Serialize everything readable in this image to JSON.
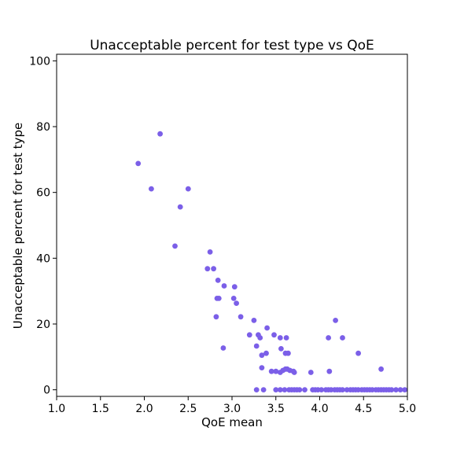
{
  "chart_data": {
    "type": "scatter",
    "title": "Unacceptable percent for test type vs QoE",
    "xlabel": "QoE mean",
    "ylabel": "Unacceptable percent for test type",
    "xlim": [
      1.0,
      5.0
    ],
    "ylim": [
      -2,
      102
    ],
    "xticks": [
      "1.0",
      "1.5",
      "2.0",
      "2.5",
      "3.0",
      "3.5",
      "4.0",
      "4.5",
      "5.0"
    ],
    "yticks": [
      "0",
      "20",
      "40",
      "60",
      "80",
      "100"
    ],
    "grid": false,
    "marker_color": "#7b5fe8",
    "points": [
      {
        "x": 1.93,
        "y": 68.8
      },
      {
        "x": 2.08,
        "y": 61.1
      },
      {
        "x": 2.18,
        "y": 77.8
      },
      {
        "x": 2.41,
        "y": 55.6
      },
      {
        "x": 2.5,
        "y": 61.1
      },
      {
        "x": 2.35,
        "y": 43.7
      },
      {
        "x": 2.75,
        "y": 41.9
      },
      {
        "x": 2.72,
        "y": 36.8
      },
      {
        "x": 2.79,
        "y": 36.8
      },
      {
        "x": 2.84,
        "y": 33.3
      },
      {
        "x": 2.91,
        "y": 31.6
      },
      {
        "x": 3.03,
        "y": 31.3
      },
      {
        "x": 2.83,
        "y": 27.8
      },
      {
        "x": 2.85,
        "y": 27.8
      },
      {
        "x": 3.02,
        "y": 27.8
      },
      {
        "x": 3.05,
        "y": 26.3
      },
      {
        "x": 2.82,
        "y": 22.2
      },
      {
        "x": 3.1,
        "y": 22.2
      },
      {
        "x": 2.9,
        "y": 12.7
      },
      {
        "x": 3.25,
        "y": 21.1
      },
      {
        "x": 3.2,
        "y": 16.7
      },
      {
        "x": 3.3,
        "y": 16.7
      },
      {
        "x": 3.32,
        "y": 15.8
      },
      {
        "x": 3.28,
        "y": 13.3
      },
      {
        "x": 3.4,
        "y": 18.8
      },
      {
        "x": 3.48,
        "y": 16.7
      },
      {
        "x": 3.55,
        "y": 15.8
      },
      {
        "x": 3.62,
        "y": 15.8
      },
      {
        "x": 3.56,
        "y": 12.5
      },
      {
        "x": 3.34,
        "y": 10.5
      },
      {
        "x": 3.39,
        "y": 11.1
      },
      {
        "x": 3.61,
        "y": 11.1
      },
      {
        "x": 3.64,
        "y": 11.1
      },
      {
        "x": 3.34,
        "y": 6.7
      },
      {
        "x": 3.45,
        "y": 5.6
      },
      {
        "x": 3.5,
        "y": 5.6
      },
      {
        "x": 3.55,
        "y": 5.3
      },
      {
        "x": 3.58,
        "y": 5.9
      },
      {
        "x": 3.61,
        "y": 6.3
      },
      {
        "x": 3.63,
        "y": 6.3
      },
      {
        "x": 3.66,
        "y": 5.9
      },
      {
        "x": 3.7,
        "y": 5.6
      },
      {
        "x": 3.71,
        "y": 5.3
      },
      {
        "x": 3.9,
        "y": 5.3
      },
      {
        "x": 4.11,
        "y": 5.6
      },
      {
        "x": 4.1,
        "y": 15.8
      },
      {
        "x": 4.18,
        "y": 21.1
      },
      {
        "x": 4.26,
        "y": 15.8
      },
      {
        "x": 4.44,
        "y": 11.1
      },
      {
        "x": 4.7,
        "y": 6.3
      },
      {
        "x": 3.28,
        "y": 0
      },
      {
        "x": 3.36,
        "y": 0
      },
      {
        "x": 3.5,
        "y": 0
      },
      {
        "x": 3.55,
        "y": 0
      },
      {
        "x": 3.6,
        "y": 0
      },
      {
        "x": 3.65,
        "y": 0
      },
      {
        "x": 3.68,
        "y": 0
      },
      {
        "x": 3.71,
        "y": 0
      },
      {
        "x": 3.74,
        "y": 0
      },
      {
        "x": 3.77,
        "y": 0
      },
      {
        "x": 3.83,
        "y": 0
      },
      {
        "x": 3.92,
        "y": 0
      },
      {
        "x": 3.95,
        "y": 0
      },
      {
        "x": 3.98,
        "y": 0
      },
      {
        "x": 4.02,
        "y": 0
      },
      {
        "x": 4.07,
        "y": 0
      },
      {
        "x": 4.1,
        "y": 0
      },
      {
        "x": 4.13,
        "y": 0
      },
      {
        "x": 4.17,
        "y": 0
      },
      {
        "x": 4.2,
        "y": 0
      },
      {
        "x": 4.23,
        "y": 0
      },
      {
        "x": 4.26,
        "y": 0
      },
      {
        "x": 4.31,
        "y": 0
      },
      {
        "x": 4.35,
        "y": 0
      },
      {
        "x": 4.38,
        "y": 0
      },
      {
        "x": 4.41,
        "y": 0
      },
      {
        "x": 4.44,
        "y": 0
      },
      {
        "x": 4.48,
        "y": 0
      },
      {
        "x": 4.51,
        "y": 0
      },
      {
        "x": 4.54,
        "y": 0
      },
      {
        "x": 4.57,
        "y": 0
      },
      {
        "x": 4.6,
        "y": 0
      },
      {
        "x": 4.64,
        "y": 0
      },
      {
        "x": 4.67,
        "y": 0
      },
      {
        "x": 4.7,
        "y": 0
      },
      {
        "x": 4.73,
        "y": 0
      },
      {
        "x": 4.76,
        "y": 0
      },
      {
        "x": 4.79,
        "y": 0
      },
      {
        "x": 4.82,
        "y": 0
      },
      {
        "x": 4.87,
        "y": 0
      },
      {
        "x": 4.92,
        "y": 0
      },
      {
        "x": 4.97,
        "y": 0
      }
    ]
  }
}
